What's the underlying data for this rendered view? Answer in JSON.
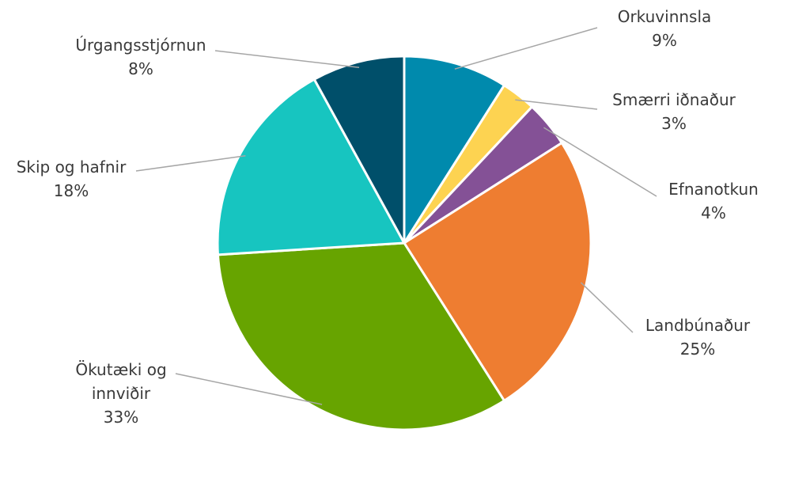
{
  "chart_data": {
    "type": "pie",
    "categories": [
      "Orkuvinnsla",
      "Smærri iðnaður",
      "Efnanotkun",
      "Landbúnaður",
      "Ökutæki og innviðir",
      "Skip og hafnir",
      "Úrgangsstjórnun"
    ],
    "values": [
      9,
      3,
      4,
      25,
      33,
      18,
      8
    ],
    "value_labels": [
      "9%",
      "3%",
      "4%",
      "25%",
      "33%",
      "18%",
      "8%"
    ],
    "colors": [
      "#008aad",
      "#fdd351",
      "#845196",
      "#ee7d31",
      "#67a400",
      "#17c5c0",
      "#004f6a"
    ]
  }
}
